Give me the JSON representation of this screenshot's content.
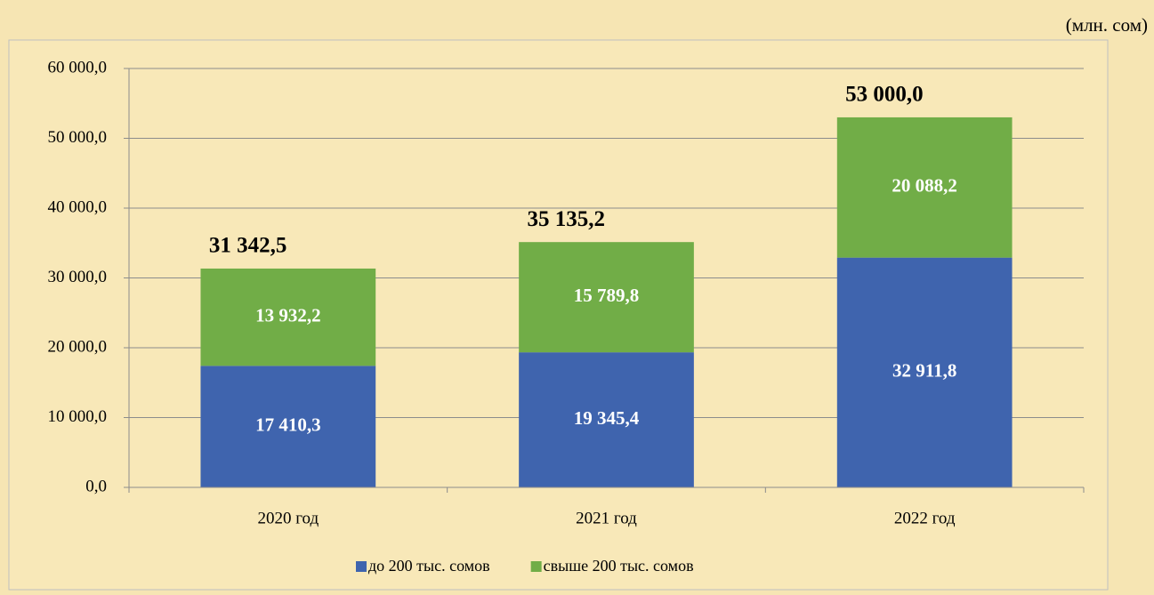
{
  "chart_data": {
    "type": "stacked_bar",
    "unit_label": "(млн. сом)",
    "categories": [
      "2020 год",
      "2021 год",
      "2022 год"
    ],
    "series": [
      {
        "name": "до 200 тыс. сомов",
        "color": "#3f64ae",
        "values": [
          17410.3,
          19345.4,
          32911.8
        ],
        "value_labels": [
          "17 410,3",
          "19 345,4",
          "32 911,8"
        ]
      },
      {
        "name": "свыше 200 тыс. сомов",
        "color": "#71ad47",
        "values": [
          13932.2,
          15789.8,
          20088.2
        ],
        "value_labels": [
          "13 932,2",
          "15 789,8",
          "20 088,2"
        ]
      }
    ],
    "totals": {
      "values": [
        31342.5,
        35135.2,
        53000.0
      ],
      "value_labels": [
        "31 342,5",
        "35 135,2",
        "53 000,0"
      ]
    },
    "ylim": [
      0,
      60000
    ],
    "yticks": [
      {
        "value": 0,
        "label": "0,0"
      },
      {
        "value": 10000,
        "label": "10 000,0"
      },
      {
        "value": 20000,
        "label": "20 000,0"
      },
      {
        "value": 30000,
        "label": "30 000,0"
      },
      {
        "value": 40000,
        "label": "40 000,0"
      },
      {
        "value": 50000,
        "label": "50 000,0"
      },
      {
        "value": 60000,
        "label": "60 000,0"
      }
    ],
    "grid": true,
    "legend": "bottom"
  }
}
